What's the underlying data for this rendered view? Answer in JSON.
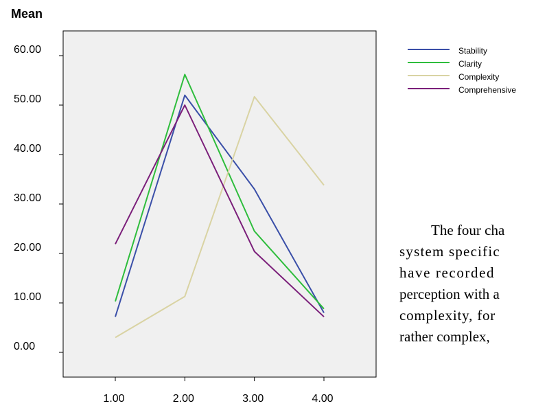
{
  "chart_data": {
    "type": "line",
    "ylabel": "Mean",
    "xlabel": "",
    "x": [
      "1.00",
      "2.00",
      "3.00",
      "4.00"
    ],
    "y_ticks": [
      "0.00",
      "10.00",
      "20.00",
      "30.00",
      "40.00",
      "50.00",
      "60.00"
    ],
    "ylim": [
      -5,
      65
    ],
    "xlim": [
      0.25,
      4.75
    ],
    "grid": false,
    "legend_position": "right",
    "plot_background": "#f0f0f0",
    "series": [
      {
        "name": "Stability",
        "color": "#3a4fa8",
        "values": [
          7.2,
          52.0,
          33.0,
          8.0
        ]
      },
      {
        "name": "Clarity",
        "color": "#2ebd3c",
        "values": [
          10.3,
          56.2,
          24.5,
          8.8
        ]
      },
      {
        "name": "Complexity",
        "color": "#d9d3a3",
        "values": [
          3.0,
          11.3,
          51.7,
          33.8
        ]
      },
      {
        "name": "Comprehensive",
        "color": "#7b1f7a",
        "values": [
          21.9,
          50.0,
          20.4,
          7.2
        ]
      }
    ]
  },
  "paragraph_lines": [
    "The four cha",
    "system specific",
    "have recorded",
    "perception with a",
    "complexity, for",
    "rather complex,"
  ]
}
